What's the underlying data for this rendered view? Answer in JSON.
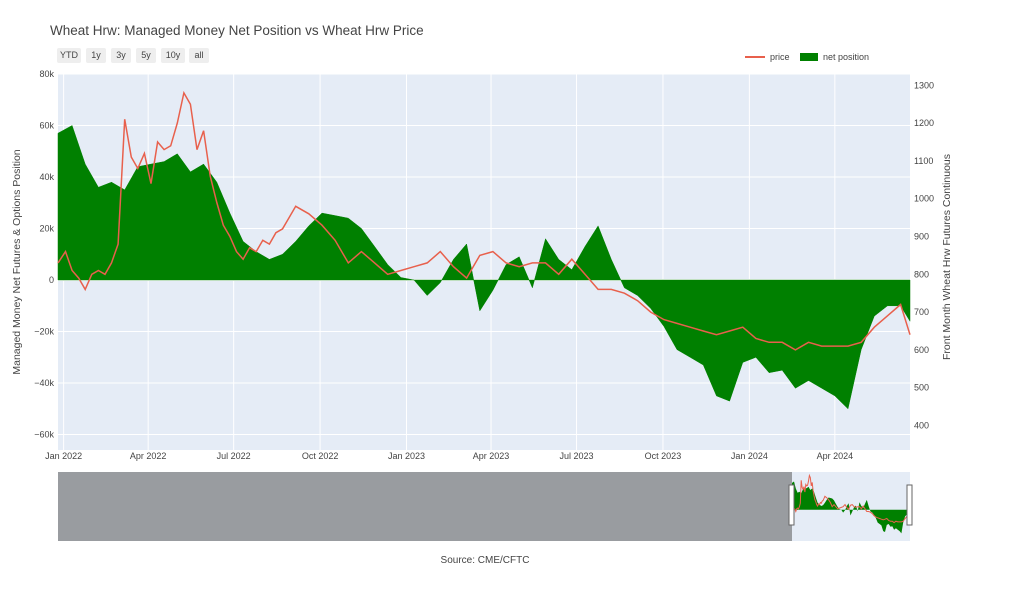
{
  "title": "Wheat Hrw: Managed Money Net Position vs Wheat Hrw Price",
  "range_buttons": [
    "YTD",
    "1y",
    "3y",
    "5y",
    "10y",
    "all"
  ],
  "source": "Source: CME/CFTC",
  "colors": {
    "price": "#e8604c",
    "net": "#008000",
    "plot_bg": "#e5ecf6",
    "grid": "#ffffff",
    "mask": "#8c8e91"
  },
  "chart_data": {
    "type": "line",
    "x_axis": {
      "type": "date",
      "range": [
        "2021-12-26",
        "2024-06-20"
      ],
      "tick_labels": [
        "Jan 2022",
        "Apr 2022",
        "Jul 2022",
        "Oct 2022",
        "Jan 2023",
        "Apr 2023",
        "Jul 2023",
        "Oct 2023",
        "Jan 2024",
        "Apr 2024"
      ],
      "tick_dates": [
        "2022-01-01",
        "2022-04-01",
        "2022-07-01",
        "2022-10-01",
        "2023-01-01",
        "2023-04-01",
        "2023-07-01",
        "2023-10-01",
        "2024-01-01",
        "2024-04-01"
      ]
    },
    "y_left": {
      "title": "Managed Money Net Futures & Options Position",
      "range": [
        -66000,
        80000
      ],
      "tick_values": [
        -60000,
        -40000,
        -20000,
        0,
        20000,
        40000,
        60000,
        80000
      ],
      "tick_labels": [
        "−60k",
        "−40k",
        "−20k",
        "0",
        "20k",
        "40k",
        "60k",
        "80k"
      ]
    },
    "y_right": {
      "title": "Front Month Wheat Hrw Futures Continuous",
      "range": [
        335,
        1330
      ],
      "tick_values": [
        400,
        500,
        600,
        700,
        800,
        900,
        1000,
        1100,
        1200,
        1300
      ],
      "tick_labels": [
        "400",
        "500",
        "600",
        "700",
        "800",
        "900",
        "1000",
        "1100",
        "1200",
        "1300"
      ]
    },
    "legend": {
      "position": "top-right",
      "entries": [
        "price",
        "net position"
      ]
    },
    "grid": true,
    "series": [
      {
        "name": "net position",
        "type": "area",
        "axis": "left",
        "x": [
          "2021-12-26",
          "2022-01-10",
          "2022-01-24",
          "2022-02-07",
          "2022-02-21",
          "2022-03-07",
          "2022-03-21",
          "2022-04-04",
          "2022-04-18",
          "2022-05-02",
          "2022-05-16",
          "2022-05-30",
          "2022-06-13",
          "2022-06-27",
          "2022-07-11",
          "2022-07-25",
          "2022-08-08",
          "2022-08-22",
          "2022-09-05",
          "2022-09-19",
          "2022-10-03",
          "2022-10-17",
          "2022-10-31",
          "2022-11-14",
          "2022-11-28",
          "2022-12-12",
          "2022-12-26",
          "2023-01-09",
          "2023-01-23",
          "2023-02-06",
          "2023-02-20",
          "2023-03-06",
          "2023-03-20",
          "2023-04-03",
          "2023-04-17",
          "2023-05-01",
          "2023-05-15",
          "2023-05-29",
          "2023-06-12",
          "2023-06-26",
          "2023-07-10",
          "2023-07-24",
          "2023-08-07",
          "2023-08-21",
          "2023-09-04",
          "2023-09-18",
          "2023-10-02",
          "2023-10-16",
          "2023-10-30",
          "2023-11-13",
          "2023-11-27",
          "2023-12-11",
          "2023-12-25",
          "2024-01-08",
          "2024-01-22",
          "2024-02-05",
          "2024-02-19",
          "2024-03-04",
          "2024-03-18",
          "2024-04-01",
          "2024-04-15",
          "2024-04-29",
          "2024-05-13",
          "2024-05-27",
          "2024-06-10",
          "2024-06-20"
        ],
        "values": [
          57000,
          60000,
          45000,
          36000,
          38000,
          35000,
          44000,
          45000,
          46000,
          49000,
          42000,
          45000,
          38000,
          26000,
          15000,
          11000,
          8000,
          10000,
          15000,
          21000,
          26000,
          25000,
          24000,
          20000,
          13000,
          6000,
          1000,
          0,
          -6000,
          -1000,
          8000,
          14000,
          -12000,
          -4000,
          6000,
          9000,
          -3000,
          16000,
          8000,
          4000,
          13000,
          21000,
          8000,
          -3000,
          -6000,
          -11000,
          -18000,
          -27000,
          -30000,
          -33000,
          -45000,
          -47000,
          -32000,
          -30000,
          -36000,
          -35000,
          -42000,
          -39000,
          -42000,
          -45000,
          -50000,
          -27000,
          -14000,
          -10000,
          -10000,
          -16000
        ]
      },
      {
        "name": "price",
        "type": "line",
        "axis": "right",
        "x": [
          "2021-12-26",
          "2022-01-03",
          "2022-01-10",
          "2022-01-17",
          "2022-01-24",
          "2022-01-31",
          "2022-02-07",
          "2022-02-14",
          "2022-02-21",
          "2022-02-28",
          "2022-03-07",
          "2022-03-14",
          "2022-03-21",
          "2022-03-28",
          "2022-04-04",
          "2022-04-11",
          "2022-04-18",
          "2022-04-25",
          "2022-05-02",
          "2022-05-09",
          "2022-05-16",
          "2022-05-23",
          "2022-05-30",
          "2022-06-06",
          "2022-06-13",
          "2022-06-20",
          "2022-06-27",
          "2022-07-04",
          "2022-07-11",
          "2022-07-18",
          "2022-07-25",
          "2022-08-01",
          "2022-08-08",
          "2022-08-15",
          "2022-08-22",
          "2022-08-29",
          "2022-09-05",
          "2022-09-19",
          "2022-10-03",
          "2022-10-17",
          "2022-10-31",
          "2022-11-14",
          "2022-11-28",
          "2022-12-12",
          "2022-12-26",
          "2023-01-09",
          "2023-01-23",
          "2023-02-06",
          "2023-02-20",
          "2023-03-06",
          "2023-03-20",
          "2023-04-03",
          "2023-04-17",
          "2023-05-01",
          "2023-05-15",
          "2023-05-29",
          "2023-06-12",
          "2023-06-26",
          "2023-07-10",
          "2023-07-24",
          "2023-08-07",
          "2023-08-21",
          "2023-09-04",
          "2023-09-18",
          "2023-10-02",
          "2023-10-16",
          "2023-10-30",
          "2023-11-13",
          "2023-11-27",
          "2023-12-11",
          "2023-12-25",
          "2024-01-08",
          "2024-01-22",
          "2024-02-05",
          "2024-02-19",
          "2024-03-04",
          "2024-03-18",
          "2024-04-01",
          "2024-04-15",
          "2024-04-29",
          "2024-05-13",
          "2024-05-27",
          "2024-06-10",
          "2024-06-20"
        ],
        "values": [
          830,
          860,
          810,
          790,
          760,
          800,
          810,
          800,
          830,
          880,
          1210,
          1110,
          1080,
          1120,
          1040,
          1150,
          1130,
          1140,
          1200,
          1280,
          1250,
          1130,
          1180,
          1060,
          990,
          930,
          900,
          860,
          840,
          870,
          860,
          890,
          880,
          910,
          920,
          950,
          980,
          960,
          930,
          890,
          830,
          860,
          830,
          800,
          810,
          820,
          830,
          860,
          820,
          790,
          850,
          860,
          830,
          820,
          830,
          830,
          800,
          840,
          800,
          760,
          760,
          750,
          730,
          700,
          680,
          670,
          660,
          650,
          640,
          650,
          660,
          630,
          620,
          620,
          600,
          620,
          610,
          610,
          610,
          620,
          660,
          690,
          720,
          640
        ]
      }
    ]
  }
}
